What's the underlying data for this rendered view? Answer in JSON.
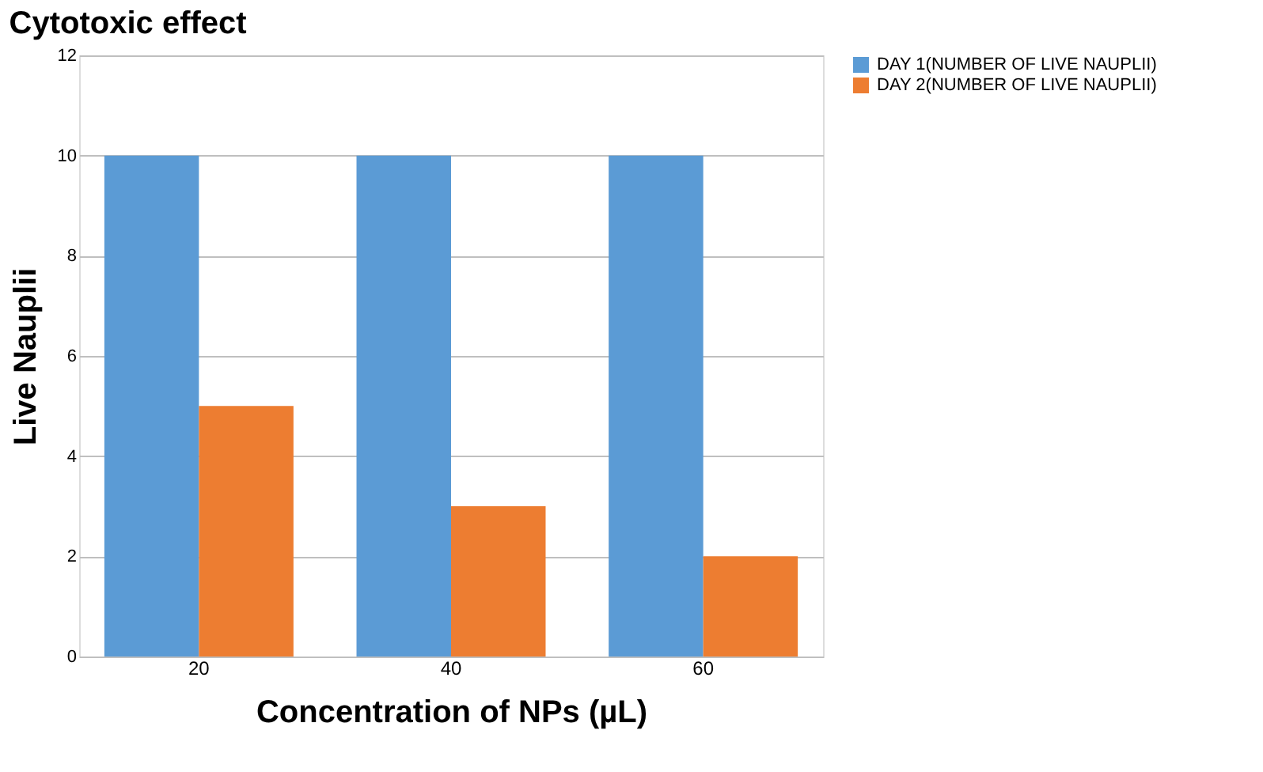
{
  "chart_data": {
    "type": "bar",
    "title": "Cytotoxic effect",
    "xlabel": "Concentration of NPs (µL)",
    "ylabel": "Live Nauplii",
    "categories": [
      "20",
      "40",
      "60"
    ],
    "series": [
      {
        "name": "DAY 1(NUMBER OF LIVE NAUPLII)",
        "color": "#5b9bd5",
        "values": [
          10,
          10,
          10
        ]
      },
      {
        "name": "DAY 2(NUMBER OF LIVE NAUPLII)",
        "color": "#ed7d31",
        "values": [
          5,
          3,
          2
        ]
      }
    ],
    "ylim": [
      0,
      12
    ],
    "yticks": [
      0,
      2,
      4,
      6,
      8,
      10,
      12
    ],
    "grid": "y",
    "legend": "right"
  }
}
